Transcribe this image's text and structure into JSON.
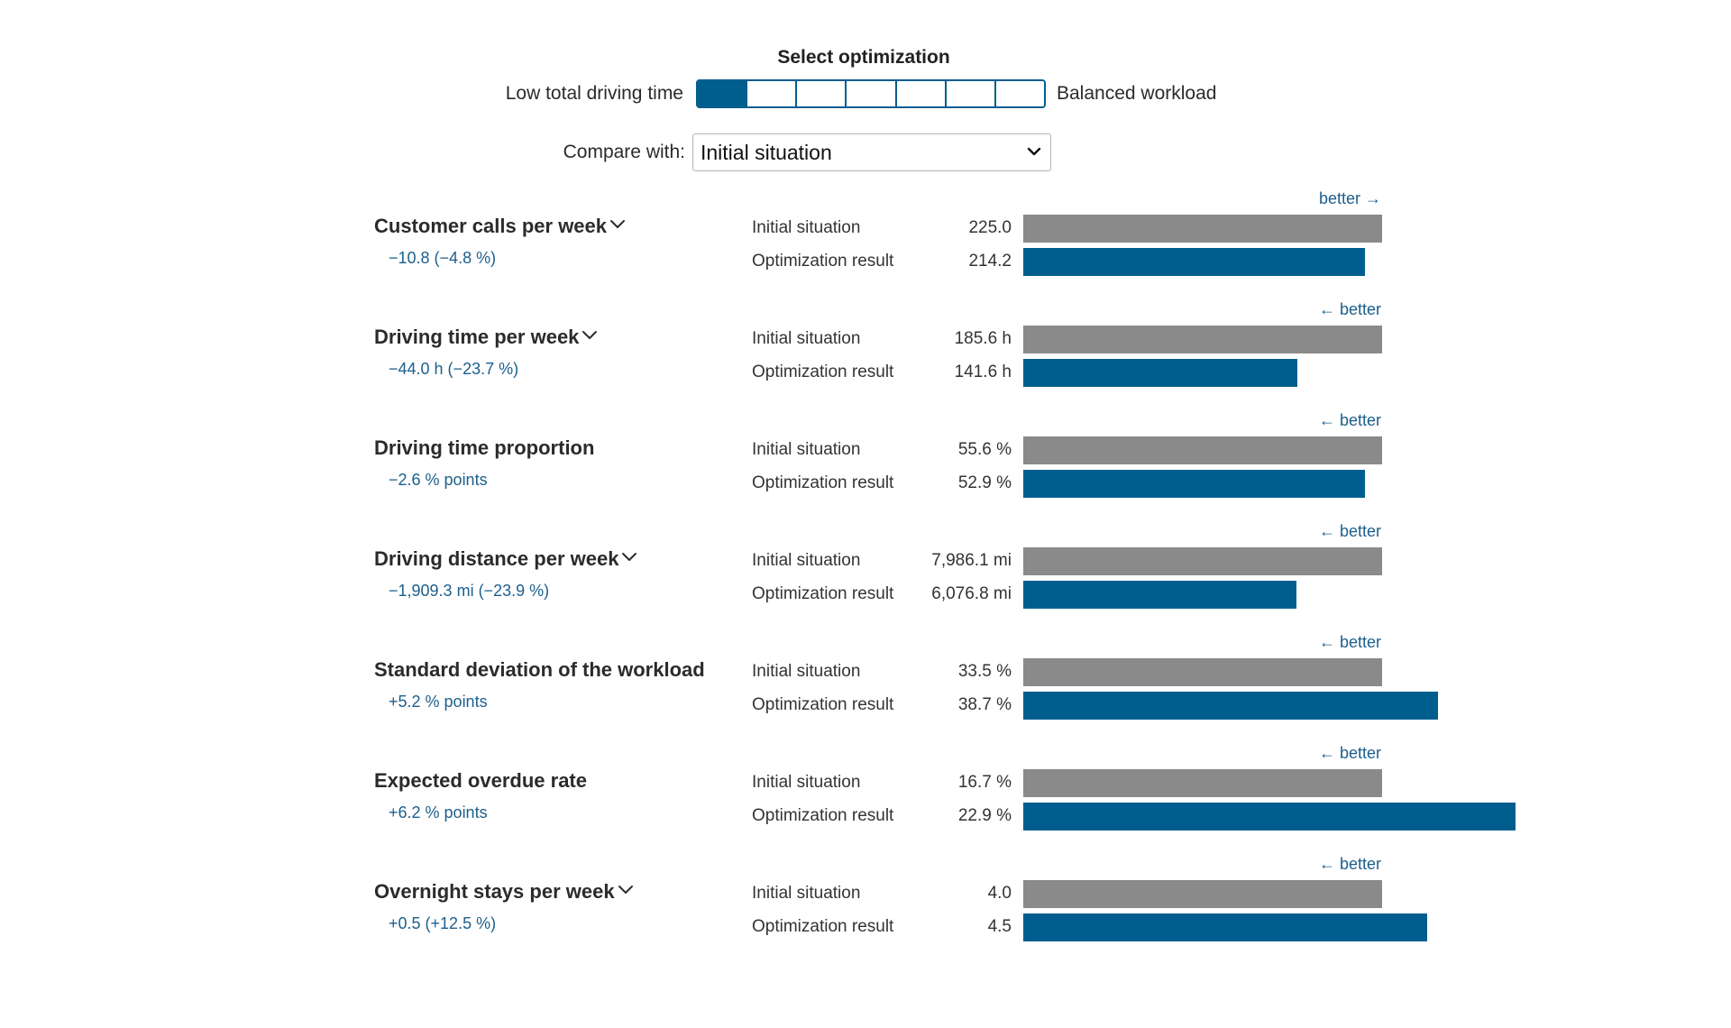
{
  "header": {
    "title": "Select optimization"
  },
  "slider": {
    "left_label": "Low total driving time",
    "right_label": "Balanced workload",
    "segments": 7,
    "selected_index": 0,
    "accent_color": "#005e8f"
  },
  "compare": {
    "label": "Compare with:",
    "selected": "Initial situation"
  },
  "colors": {
    "initial_bar": "#8a8a8a",
    "result_bar": "#005e8f",
    "delta_text": "#1c5f8c"
  },
  "chart_data": {
    "type": "bar",
    "orientation": "horizontal",
    "series_names": [
      "Initial situation",
      "Optimization result"
    ],
    "metrics": [
      {
        "title": "Customer calls per week",
        "expandable": true,
        "delta": "−10.8 (−4.8 %)",
        "better": "better →",
        "initial_label": "Initial situation",
        "result_label": "Optimization result",
        "initial_display": "225.0",
        "result_display": "214.2",
        "initial": 225.0,
        "result": 214.2
      },
      {
        "title": "Driving time per week",
        "expandable": true,
        "delta": "−44.0 h (−23.7 %)",
        "better": "← better",
        "initial_label": "Initial situation",
        "result_label": "Optimization result",
        "initial_display": "185.6 h",
        "result_display": "141.6 h",
        "initial": 185.6,
        "result": 141.6
      },
      {
        "title": "Driving time proportion",
        "expandable": false,
        "delta": "−2.6 % points",
        "better": "← better",
        "initial_label": "Initial situation",
        "result_label": "Optimization result",
        "initial_display": "55.6 %",
        "result_display": "52.9 %",
        "initial": 55.6,
        "result": 52.9
      },
      {
        "title": "Driving distance per week",
        "expandable": true,
        "delta": "−1,909.3 mi (−23.9 %)",
        "better": "← better",
        "initial_label": "Initial situation",
        "result_label": "Optimization result",
        "initial_display": "7,986.1 mi",
        "result_display": "6,076.8 mi",
        "initial": 7986.1,
        "result": 6076.8
      },
      {
        "title": "Standard deviation of the workload",
        "expandable": false,
        "delta": "+5.2 % points",
        "better": "← better",
        "initial_label": "Initial situation",
        "result_label": "Optimization result",
        "initial_display": "33.5 %",
        "result_display": "38.7 %",
        "initial": 33.5,
        "result": 38.7
      },
      {
        "title": "Expected overdue rate",
        "expandable": false,
        "delta": "+6.2 % points",
        "better": "← better",
        "initial_label": "Initial situation",
        "result_label": "Optimization result",
        "initial_display": "16.7 %",
        "result_display": "22.9 %",
        "initial": 16.7,
        "result": 22.9
      },
      {
        "title": "Overnight stays per week",
        "expandable": true,
        "delta": "+0.5 (+12.5 %)",
        "better": "← better",
        "initial_label": "Initial situation",
        "result_label": "Optimization result",
        "initial_display": "4.0",
        "result_display": "4.5",
        "initial": 4.0,
        "result": 4.5
      }
    ]
  }
}
